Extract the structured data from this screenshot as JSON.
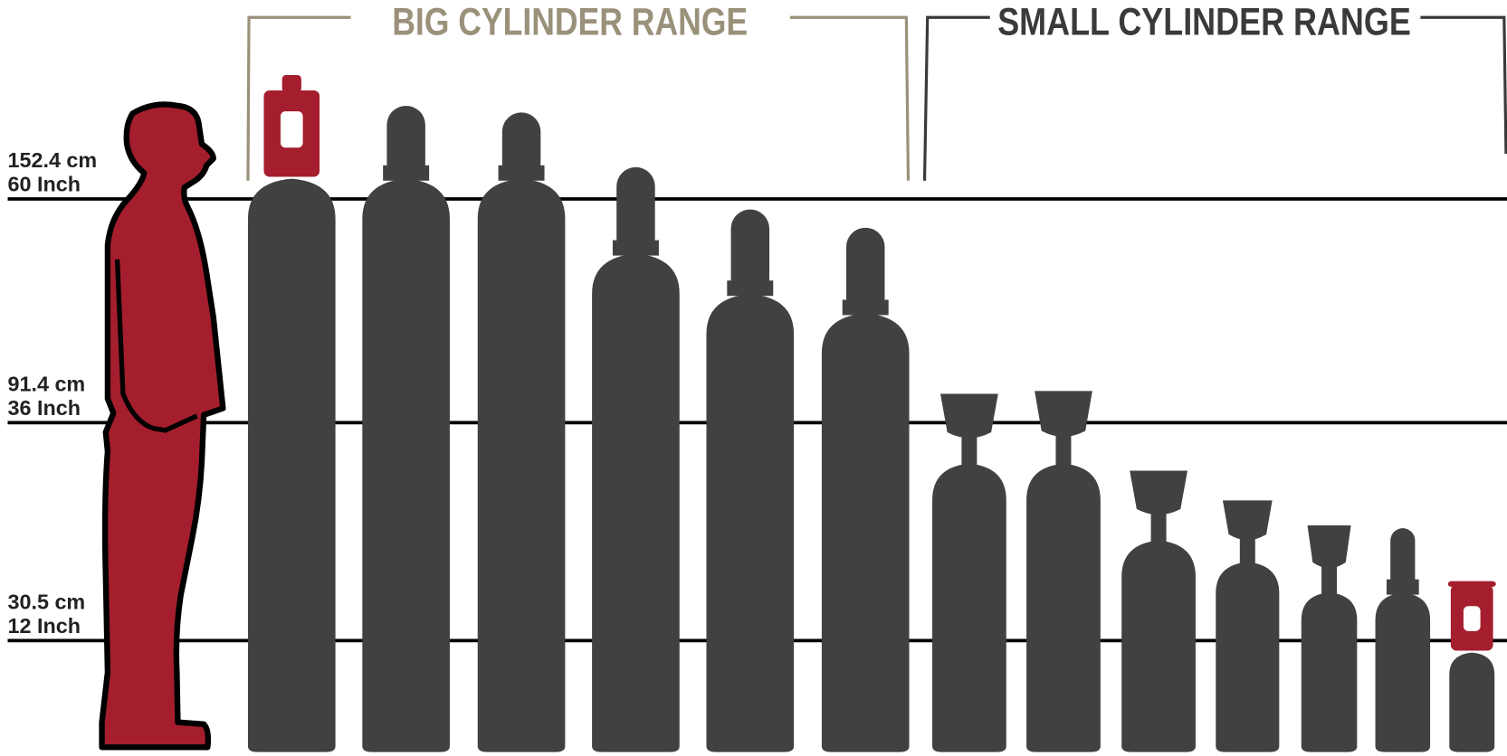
{
  "ranges": [
    {
      "title": "BIG CYLINDER RANGE"
    },
    {
      "title": "SMALL CYLINDER RANGE"
    }
  ],
  "height_lines": [
    {
      "cm": "152.4 cm",
      "inch": "60 Inch"
    },
    {
      "cm": "91.4 cm",
      "inch": "36 Inch"
    },
    {
      "cm": "30.5 cm",
      "inch": "12 Inch"
    }
  ]
}
